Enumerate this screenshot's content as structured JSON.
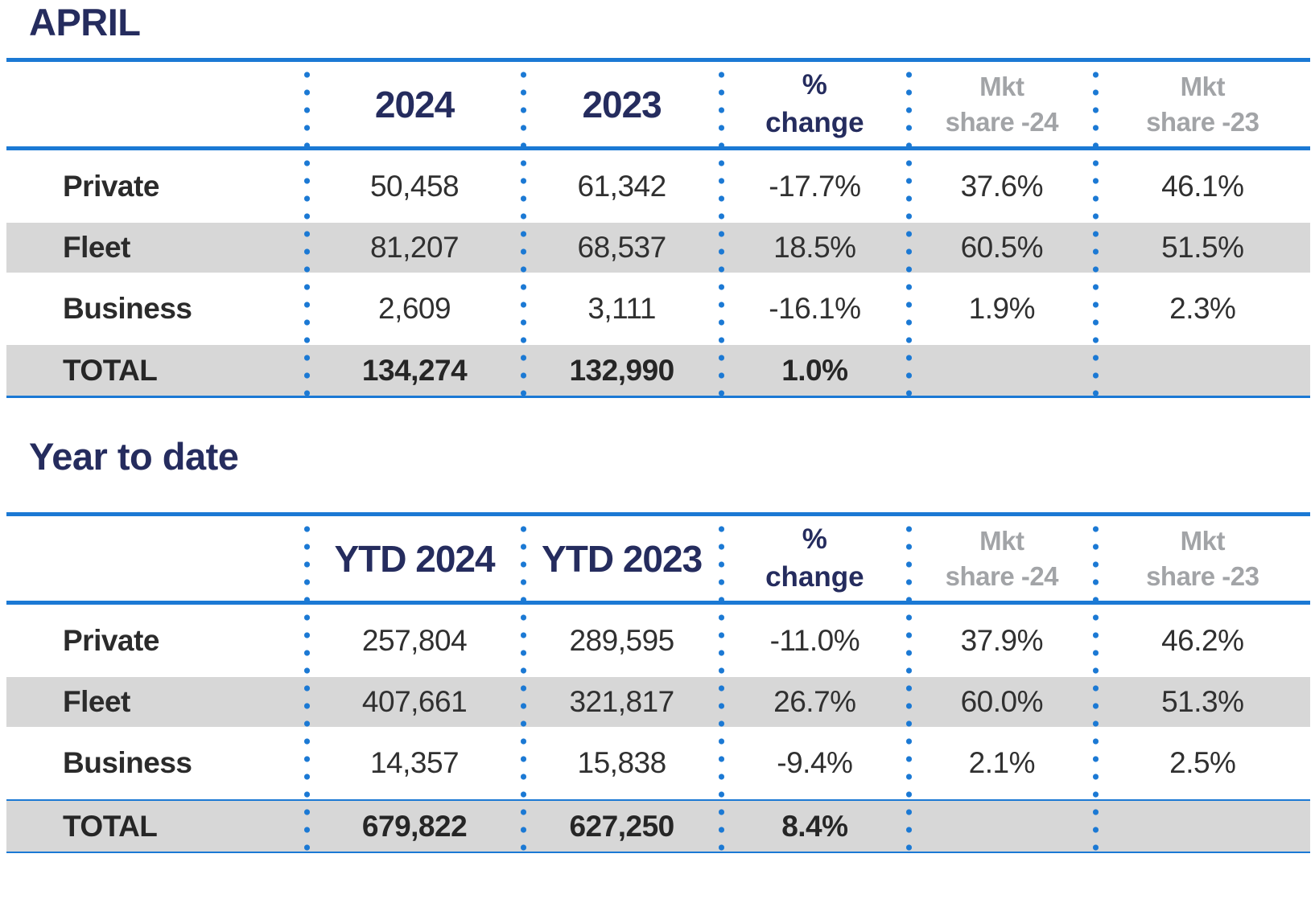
{
  "colors": {
    "blue": "#1b79d4",
    "navy": "#252c5e",
    "band": "#d7d7d7",
    "muted": "#a2a4a7",
    "text": "#303030"
  },
  "chart_data": [
    {
      "type": "table",
      "title": "APRIL",
      "columns": [
        "",
        "2024",
        "2023",
        "% change",
        "Mkt share -24",
        "Mkt share -23"
      ],
      "header_lines": [
        [
          "2024"
        ],
        [
          "2023"
        ],
        [
          "%",
          "change"
        ],
        [
          "Mkt",
          "share -24"
        ],
        [
          "Mkt",
          "share -23"
        ]
      ],
      "rows": [
        {
          "label": "Private",
          "values": [
            "50,458",
            "61,342",
            "-17.7%",
            "37.6%",
            "46.1%"
          ]
        },
        {
          "label": "Fleet",
          "values": [
            "81,207",
            "68,537",
            "18.5%",
            "60.5%",
            "51.5%"
          ]
        },
        {
          "label": "Business",
          "values": [
            "2,609",
            "3,111",
            "-16.1%",
            "1.9%",
            "2.3%"
          ]
        },
        {
          "label": "TOTAL",
          "values": [
            "134,274",
            "132,990",
            "1.0%",
            "",
            ""
          ]
        }
      ]
    },
    {
      "type": "table",
      "title": "Year to date",
      "columns": [
        "",
        "YTD 2024",
        "YTD 2023",
        "% change",
        "Mkt share -24",
        "Mkt share -23"
      ],
      "header_lines": [
        [
          "YTD 2024"
        ],
        [
          "YTD 2023"
        ],
        [
          "%",
          "change"
        ],
        [
          "Mkt",
          "share -24"
        ],
        [
          "Mkt",
          "share -23"
        ]
      ],
      "rows": [
        {
          "label": "Private",
          "values": [
            "257,804",
            "289,595",
            "-11.0%",
            "37.9%",
            "46.2%"
          ]
        },
        {
          "label": "Fleet",
          "values": [
            "407,661",
            "321,817",
            "26.7%",
            "60.0%",
            "51.3%"
          ]
        },
        {
          "label": "Business",
          "values": [
            "14,357",
            "15,838",
            "-9.4%",
            "2.1%",
            "2.5%"
          ]
        },
        {
          "label": "TOTAL",
          "values": [
            "679,822",
            "627,250",
            "8.4%",
            "",
            ""
          ]
        }
      ]
    }
  ]
}
